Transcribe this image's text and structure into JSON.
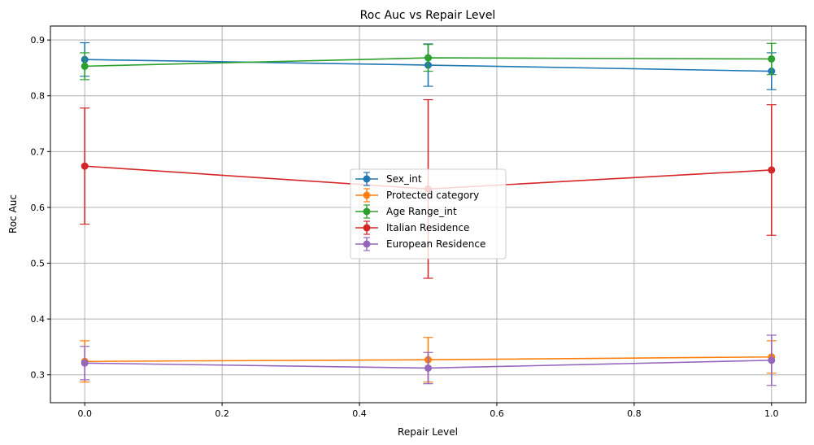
{
  "chart_data": {
    "type": "line",
    "title": "Roc Auc vs Repair Level",
    "xlabel": "Repair Level",
    "ylabel": "Roc Auc",
    "xlim": [
      -0.05,
      1.05
    ],
    "ylim": [
      0.25,
      0.925
    ],
    "x_ticks": [
      0.0,
      0.2,
      0.4,
      0.6,
      0.8,
      1.0
    ],
    "x_tick_labels": [
      "0.0",
      "0.2",
      "0.4",
      "0.6",
      "0.8",
      "1.0"
    ],
    "y_ticks": [
      0.3,
      0.4,
      0.5,
      0.6,
      0.7,
      0.8,
      0.9
    ],
    "y_tick_labels": [
      "0.3",
      "0.4",
      "0.5",
      "0.6",
      "0.7",
      "0.8",
      "0.9"
    ],
    "grid": true,
    "legend_position": "center",
    "x": [
      0.0,
      0.5,
      1.0
    ],
    "series": [
      {
        "name": "Sex_int",
        "color": "#1f77b4",
        "values": [
          0.865,
          0.855,
          0.844
        ],
        "errors": [
          0.03,
          0.038,
          0.033
        ]
      },
      {
        "name": "Protected category",
        "color": "#ff7f0e",
        "values": [
          0.324,
          0.327,
          0.332
        ],
        "errors": [
          0.037,
          0.04,
          0.029
        ]
      },
      {
        "name": "Age Range_int",
        "color": "#2ca02c",
        "values": [
          0.853,
          0.868,
          0.866
        ],
        "errors": [
          0.024,
          0.024,
          0.028
        ]
      },
      {
        "name": "Italian Residence",
        "color": "#d62728",
        "values": [
          0.674,
          0.633,
          0.667
        ],
        "errors": [
          0.104,
          0.16,
          0.117
        ]
      },
      {
        "name": "European Residence",
        "color": "#9467bd",
        "values": [
          0.321,
          0.312,
          0.326
        ],
        "errors": [
          0.03,
          0.028,
          0.045
        ]
      }
    ]
  }
}
